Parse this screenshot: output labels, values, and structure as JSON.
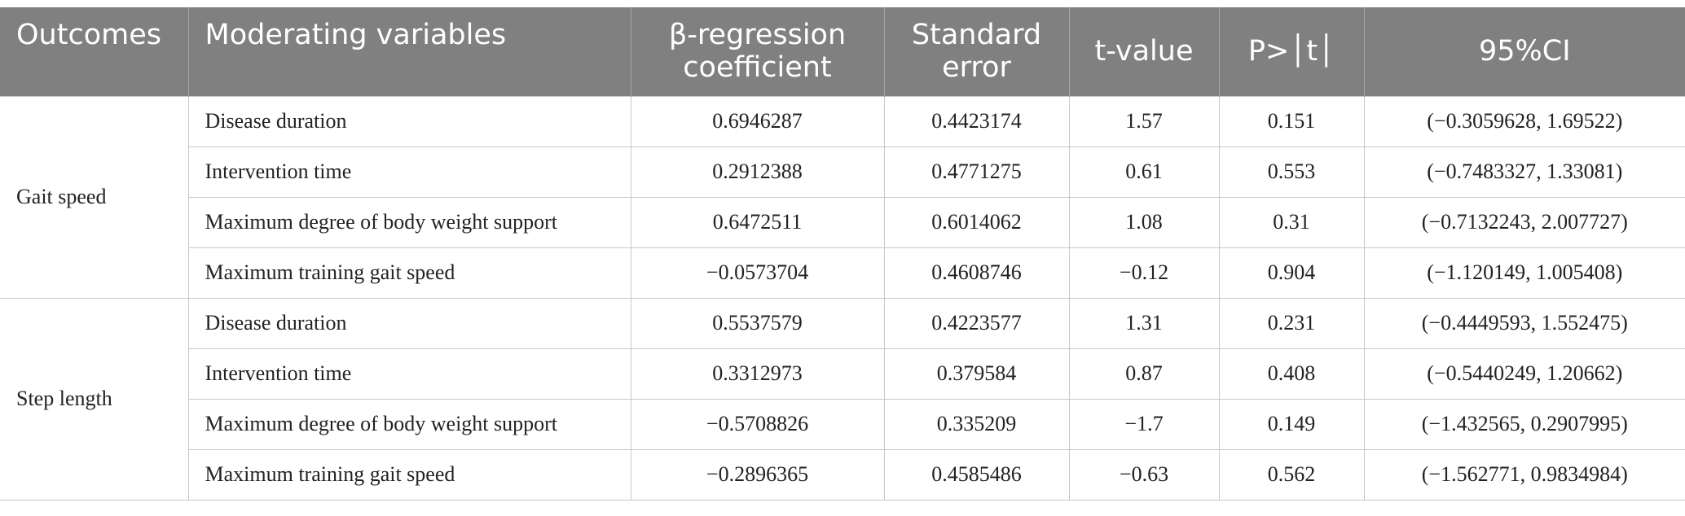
{
  "table": {
    "header": [
      "Outcomes",
      "Moderating variables",
      "β-regression coefficient",
      "Standard error",
      "t-value",
      "P>│t│",
      "95%CI"
    ],
    "groups": [
      {
        "outcome": "Gait speed",
        "rows": [
          [
            "Disease duration",
            "0.6946287",
            "0.4423174",
            "1.57",
            "0.151",
            "(−0.3059628, 1.69522)"
          ],
          [
            "Intervention time",
            "0.2912388",
            "0.4771275",
            "0.61",
            "0.553",
            "(−0.7483327, 1.33081)"
          ],
          [
            "Maximum degree of body weight support",
            "0.6472511",
            "0.6014062",
            "1.08",
            "0.31",
            "(−0.7132243, 2.007727)"
          ],
          [
            "Maximum training gait speed",
            "−0.0573704",
            "0.4608746",
            "−0.12",
            "0.904",
            "(−1.120149, 1.005408)"
          ]
        ]
      },
      {
        "outcome": "Step length",
        "rows": [
          [
            "Disease duration",
            "0.5537579",
            "0.4223577",
            "1.31",
            "0.231",
            "(−0.4449593, 1.552475)"
          ],
          [
            "Intervention time",
            "0.3312973",
            "0.379584",
            "0.87",
            "0.408",
            "(−0.5440249, 1.20662)"
          ],
          [
            "Maximum degree of body weight support",
            "−0.5708826",
            "0.335209",
            "−1.7",
            "0.149",
            "(−1.432565, 0.2907995)"
          ],
          [
            "Maximum training gait speed",
            "−0.2896365",
            "0.4585486",
            "−0.63",
            "0.562",
            "(−1.562771, 0.9834984)"
          ]
        ]
      }
    ]
  }
}
